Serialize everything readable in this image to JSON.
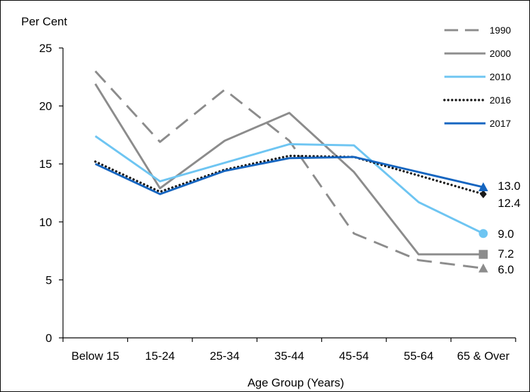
{
  "chart_data": {
    "type": "line",
    "ylabel": "Per Cent",
    "xlabel": "Age Group (Years)",
    "ylim": [
      0,
      25
    ],
    "yticks": [
      "0",
      "5",
      "10",
      "15",
      "20",
      "25"
    ],
    "categories": [
      "Below 15",
      "15-24",
      "25-34",
      "35-44",
      "45-54",
      "55-64",
      "65 & Over"
    ],
    "legend_position": "top-right",
    "grid": false,
    "series": [
      {
        "name": "1990",
        "values": [
          23.0,
          16.9,
          21.4,
          17.0,
          9.0,
          6.7,
          6.0
        ],
        "color": "#8c8c8c",
        "style": "dashed",
        "marker": "triangle",
        "end_label": "6.0"
      },
      {
        "name": "2000",
        "values": [
          21.9,
          12.9,
          17.0,
          19.4,
          14.3,
          7.2,
          7.2
        ],
        "color": "#8c8c8c",
        "style": "solid",
        "marker": "square",
        "end_label": "7.2"
      },
      {
        "name": "2010",
        "values": [
          17.4,
          13.5,
          15.1,
          16.7,
          16.6,
          11.7,
          9.0
        ],
        "color": "#6ec5f2",
        "style": "solid",
        "marker": "circle",
        "end_label": "9.0"
      },
      {
        "name": "2016",
        "values": [
          15.2,
          12.6,
          14.5,
          15.7,
          15.6,
          14.0,
          12.4
        ],
        "color": "#1a1a1a",
        "style": "dotted",
        "marker": "diamond",
        "end_label": "12.4"
      },
      {
        "name": "2017",
        "values": [
          15.0,
          12.4,
          14.4,
          15.5,
          15.6,
          14.3,
          13.0
        ],
        "color": "#1565c0",
        "style": "solid",
        "marker": "triangle",
        "end_label": "13.0"
      }
    ]
  }
}
